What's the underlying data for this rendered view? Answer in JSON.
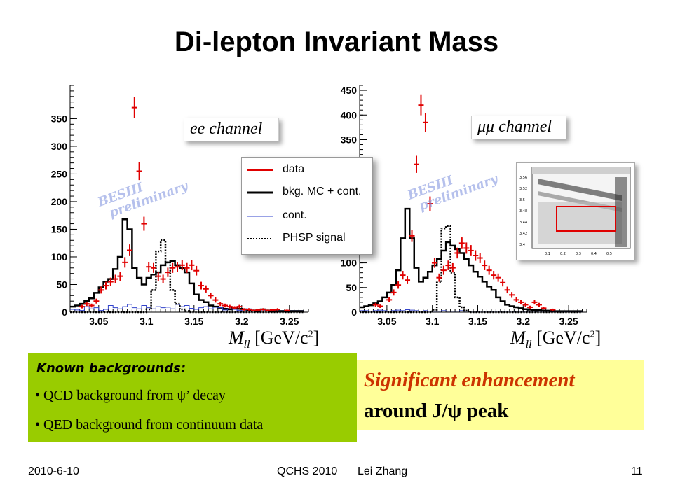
{
  "slide": {
    "title": "Di-lepton Invariant Mass",
    "footer_date": "2010-6-10",
    "footer_conf": "QCHS 2010",
    "footer_author": "Lei Zhang",
    "page_number": "11"
  },
  "legend": {
    "items": [
      {
        "label": "data",
        "style": "red-line"
      },
      {
        "label": "bkg. MC + cont.",
        "style": "black-thick-line"
      },
      {
        "label": "cont.",
        "style": "blue-thin-line"
      },
      {
        "label": "PHSP signal",
        "style": "black-dotted-line"
      }
    ]
  },
  "watermark": {
    "line1": "BESIII",
    "line2": "preliminary"
  },
  "known_backgrounds": {
    "heading": "Known backgrounds:",
    "items": [
      "QCD background from ψ’ decay",
      "QED background from continuum data"
    ]
  },
  "conclusion": {
    "line1": "Significant enhancement",
    "line2": "around J/ψ peak"
  },
  "colors": {
    "data": "#e00000",
    "bkg": "#000000",
    "cont": "#3344cc",
    "phsp": "#000000",
    "green_box": "#99cc00",
    "yellow_box": "#ffff99",
    "accent_text": "#cc3300"
  },
  "chart_data": [
    {
      "type": "line",
      "channel_label": "ee channel",
      "xlabel": "M_ll [GeV/c²]",
      "xlim": [
        3.02,
        3.27
      ],
      "ylim": [
        0,
        410
      ],
      "xticks": [
        3.05,
        3.1,
        3.15,
        3.2,
        3.25
      ],
      "yticks": [
        0,
        50,
        100,
        150,
        200,
        250,
        300,
        350
      ],
      "bin_edges_start": 3.02,
      "bin_width": 0.005,
      "series": [
        {
          "name": "data",
          "style": "points",
          "x": [
            3.0325,
            3.0375,
            3.0425,
            3.0475,
            3.0525,
            3.0575,
            3.0625,
            3.0675,
            3.0725,
            3.0775,
            3.0825,
            3.0875,
            3.0925,
            3.0975,
            3.1025,
            3.1075,
            3.1125,
            3.1175,
            3.1225,
            3.1275,
            3.1325,
            3.1375,
            3.1425,
            3.1475,
            3.1525,
            3.1575,
            3.1625,
            3.1675,
            3.1725,
            3.1775,
            3.1825,
            3.1875,
            3.1925,
            3.1975,
            3.2025,
            3.2075,
            3.2125,
            3.2175,
            3.2225,
            3.2275,
            3.2325,
            3.2375,
            3.2475
          ],
          "y": [
            10,
            15,
            12,
            20,
            40,
            48,
            55,
            60,
            65,
            90,
            112,
            370,
            255,
            160,
            82,
            80,
            65,
            60,
            72,
            80,
            82,
            85,
            80,
            85,
            75,
            48,
            42,
            30,
            22,
            15,
            12,
            10,
            8,
            10,
            5,
            5,
            3,
            4,
            5,
            3,
            4,
            5,
            3
          ]
        },
        {
          "name": "bkg. MC + cont.",
          "style": "hist",
          "values": [
            10,
            12,
            15,
            20,
            25,
            35,
            45,
            55,
            60,
            78,
            100,
            168,
            150,
            80,
            62,
            50,
            62,
            68,
            72,
            85,
            90,
            92,
            85,
            80,
            72,
            52,
            32,
            22,
            18,
            12,
            10,
            8,
            6,
            5,
            8,
            6,
            5,
            4,
            3,
            2,
            5,
            3,
            2,
            2,
            2,
            2,
            2,
            2,
            2
          ]
        },
        {
          "name": "cont.",
          "style": "hist",
          "values": [
            5,
            4,
            3,
            10,
            6,
            8,
            3,
            5,
            12,
            8,
            6,
            10,
            14,
            8,
            6,
            12,
            8,
            6,
            10,
            8,
            9,
            6,
            14,
            10,
            12,
            7,
            5,
            8,
            10,
            6,
            9,
            8,
            4,
            6,
            5,
            3,
            4,
            6,
            3,
            2,
            4,
            3,
            2,
            2,
            2,
            2,
            2,
            2,
            2
          ]
        },
        {
          "name": "PHSP signal",
          "style": "dotted-hist",
          "values": [
            0,
            0,
            0,
            0,
            0,
            0,
            0,
            0,
            0,
            0,
            0,
            0,
            0,
            0,
            0,
            0,
            5,
            40,
            110,
            130,
            90,
            40,
            15,
            5,
            2,
            0,
            0,
            0,
            0,
            0,
            0,
            0,
            0,
            0,
            0,
            0,
            0,
            0,
            0,
            0,
            0,
            0,
            0,
            0,
            0,
            0,
            0,
            0,
            0
          ]
        }
      ]
    },
    {
      "type": "line",
      "channel_label": "μμ channel",
      "xlabel": "M_ll [GeV/c²]",
      "xlim": [
        3.02,
        3.27
      ],
      "ylim": [
        0,
        460
      ],
      "xticks": [
        3.05,
        3.1,
        3.15,
        3.2,
        3.25
      ],
      "yticks": [
        0,
        50,
        100,
        150,
        200,
        250,
        300,
        350,
        400,
        450
      ],
      "bin_edges_start": 3.02,
      "bin_width": 0.005,
      "series": [
        {
          "name": "data",
          "style": "points",
          "x": [
            3.0375,
            3.0425,
            3.0525,
            3.0575,
            3.0625,
            3.0675,
            3.0725,
            3.0775,
            3.0825,
            3.0875,
            3.0925,
            3.0975,
            3.1025,
            3.1075,
            3.1125,
            3.1175,
            3.1225,
            3.1275,
            3.1325,
            3.1375,
            3.1425,
            3.1475,
            3.1525,
            3.1575,
            3.1625,
            3.1675,
            3.1725,
            3.1775,
            3.1825,
            3.1875,
            3.1925,
            3.1975,
            3.2025,
            3.2075,
            3.2125,
            3.2175,
            3.2225,
            3.2325
          ],
          "y": [
            15,
            12,
            25,
            40,
            55,
            75,
            65,
            155,
            300,
            420,
            385,
            220,
            100,
            70,
            85,
            95,
            90,
            120,
            140,
            130,
            125,
            115,
            110,
            95,
            85,
            75,
            70,
            60,
            45,
            35,
            25,
            20,
            15,
            10,
            20,
            15,
            8,
            5
          ]
        },
        {
          "name": "bkg. MC + cont.",
          "style": "hist",
          "values": [
            10,
            12,
            14,
            18,
            22,
            30,
            40,
            55,
            85,
            150,
            210,
            150,
            90,
            62,
            70,
            82,
            95,
            108,
            125,
            142,
            135,
            128,
            120,
            108,
            95,
            82,
            72,
            62,
            52,
            45,
            30,
            22,
            15,
            12,
            10,
            8,
            6,
            5,
            4,
            4,
            3,
            3,
            2,
            2,
            2,
            2,
            2,
            2,
            2
          ]
        },
        {
          "name": "cont.",
          "style": "hist",
          "values": [
            3,
            3,
            2,
            3,
            4,
            3,
            2,
            3,
            4,
            3,
            5,
            4,
            3,
            2,
            3,
            2,
            2,
            2,
            3,
            2,
            2,
            2,
            3,
            2,
            2,
            2,
            2,
            2,
            2,
            2,
            2,
            2,
            2,
            2,
            2,
            2,
            2,
            2,
            2,
            2,
            2,
            2,
            2,
            2,
            2,
            2,
            2,
            2,
            2
          ]
        },
        {
          "name": "PHSP signal",
          "style": "dotted-hist",
          "values": [
            0,
            0,
            0,
            0,
            0,
            0,
            0,
            0,
            0,
            0,
            0,
            0,
            0,
            0,
            0,
            0,
            5,
            60,
            170,
            175,
            80,
            30,
            10,
            3,
            0,
            0,
            0,
            0,
            0,
            0,
            0,
            0,
            0,
            0,
            0,
            0,
            0,
            0,
            0,
            0,
            0,
            0,
            0,
            0,
            0,
            0,
            0,
            0,
            0
          ]
        }
      ]
    }
  ]
}
